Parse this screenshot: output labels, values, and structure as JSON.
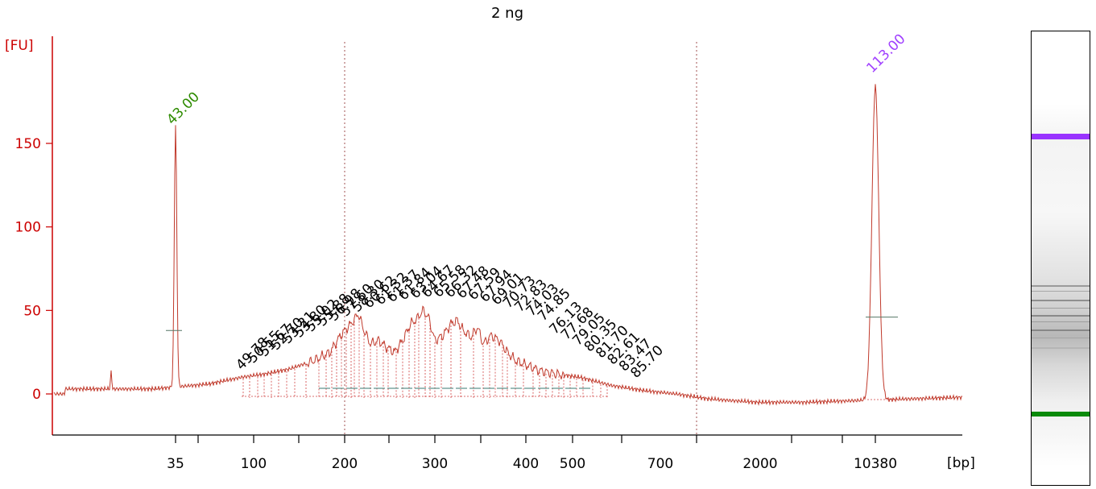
{
  "title": "2 ng",
  "chart_data": {
    "type": "line",
    "title": "2 ng",
    "ylabel": "[FU]",
    "xlabel": "[bp]",
    "ylim": [
      -25,
      175
    ],
    "yticks": [
      0,
      50,
      100,
      150
    ],
    "xticks": [
      "35",
      "100",
      "200",
      "300",
      "400",
      "500",
      "700",
      "2000",
      "10380"
    ],
    "marker_peaks": [
      {
        "size_bp": "35",
        "label": "43.00",
        "height_fu": 157,
        "color": "#2e8b00"
      },
      {
        "size_bp": "10380",
        "label": "113.00",
        "height_fu": 188,
        "color": "#a040ff"
      }
    ],
    "peak_labels": [
      "49.78",
      "50.55",
      "51.67",
      "52.70",
      "53.21",
      "53.80",
      "55.02",
      "55.88",
      "56.98",
      "57.60",
      "58.30",
      "60.62",
      "61.32",
      "61.37",
      "61.84",
      "63.04",
      "64.67",
      "65.58",
      "66.32",
      "67.48",
      "67.59",
      "67.94",
      "69.01",
      "70.73",
      "72.83",
      "74.03",
      "74.85",
      "76.13",
      "77.68",
      "79.05",
      "80.35",
      "81.70",
      "82.61",
      "83.47",
      "85.70"
    ],
    "line_color": "#c0392b",
    "axis_color": "#cc0000",
    "grid": false
  },
  "gel": {
    "upper_marker_color": "#9933ff",
    "lower_marker_color": "#0a8a0a"
  }
}
